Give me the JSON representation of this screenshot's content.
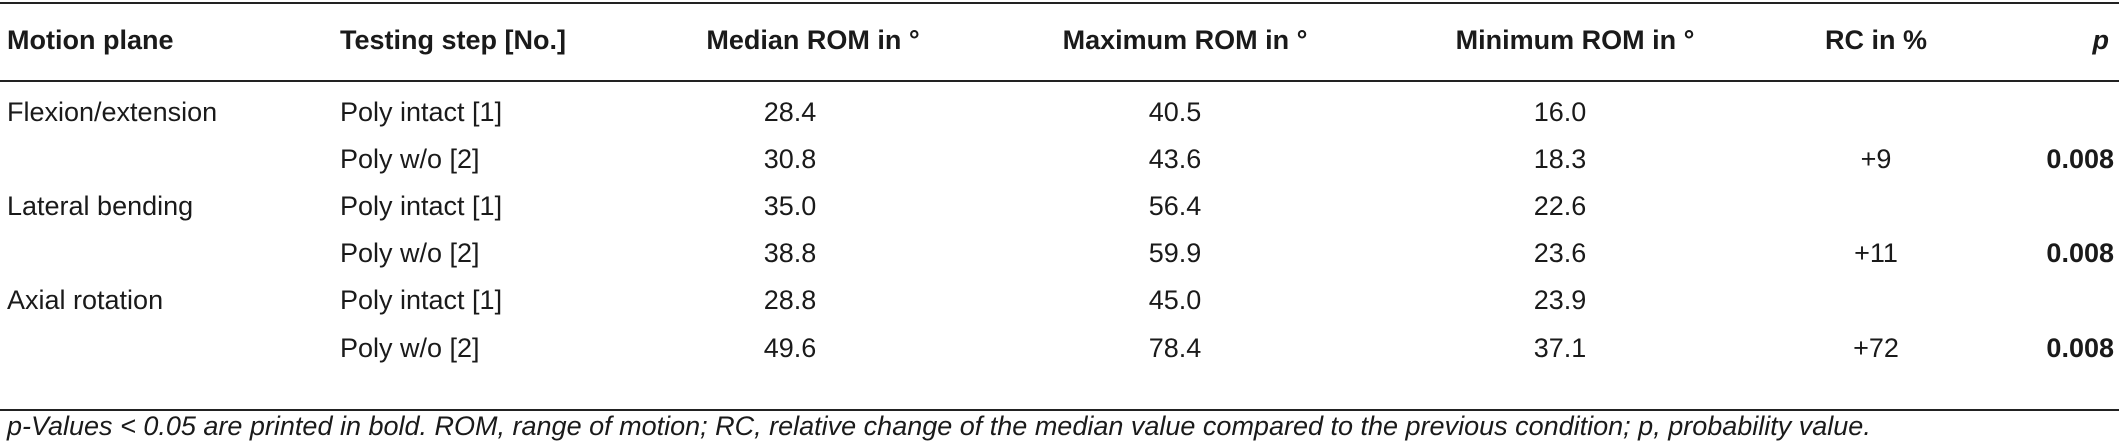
{
  "headers": {
    "plane": "Motion plane",
    "step": "Testing step [No.]",
    "median": "Median ROM in °",
    "max": "Maximum ROM in °",
    "min": "Minimum ROM in °",
    "rc": "RC in %",
    "p": "p"
  },
  "rows": [
    {
      "plane": "Flexion/extension",
      "step": "Poly intact [1]",
      "median": "28.4",
      "max": "40.5",
      "min": "16.0",
      "rc": "",
      "p": ""
    },
    {
      "plane": "",
      "step": "Poly w/o [2]",
      "median": "30.8",
      "max": "43.6",
      "min": "18.3",
      "rc": "+9",
      "p": "0.008"
    },
    {
      "plane": "Lateral bending",
      "step": "Poly intact [1]",
      "median": "35.0",
      "max": "56.4",
      "min": "22.6",
      "rc": "",
      "p": ""
    },
    {
      "plane": "",
      "step": "Poly w/o [2]",
      "median": "38.8",
      "max": "59.9",
      "min": "23.6",
      "rc": "+11",
      "p": "0.008"
    },
    {
      "plane": "Axial rotation",
      "step": "Poly intact [1]",
      "median": "28.8",
      "max": "45.0",
      "min": "23.9",
      "rc": "",
      "p": ""
    },
    {
      "plane": "",
      "step": "Poly w/o [2]",
      "median": "49.6",
      "max": "78.4",
      "min": "37.1",
      "rc": "+72",
      "p": "0.008"
    }
  ],
  "footnote": "p-Values < 0.05 are printed in bold. ROM, range of motion; RC, relative change of the median value compared to the previous condition; p, probability value."
}
